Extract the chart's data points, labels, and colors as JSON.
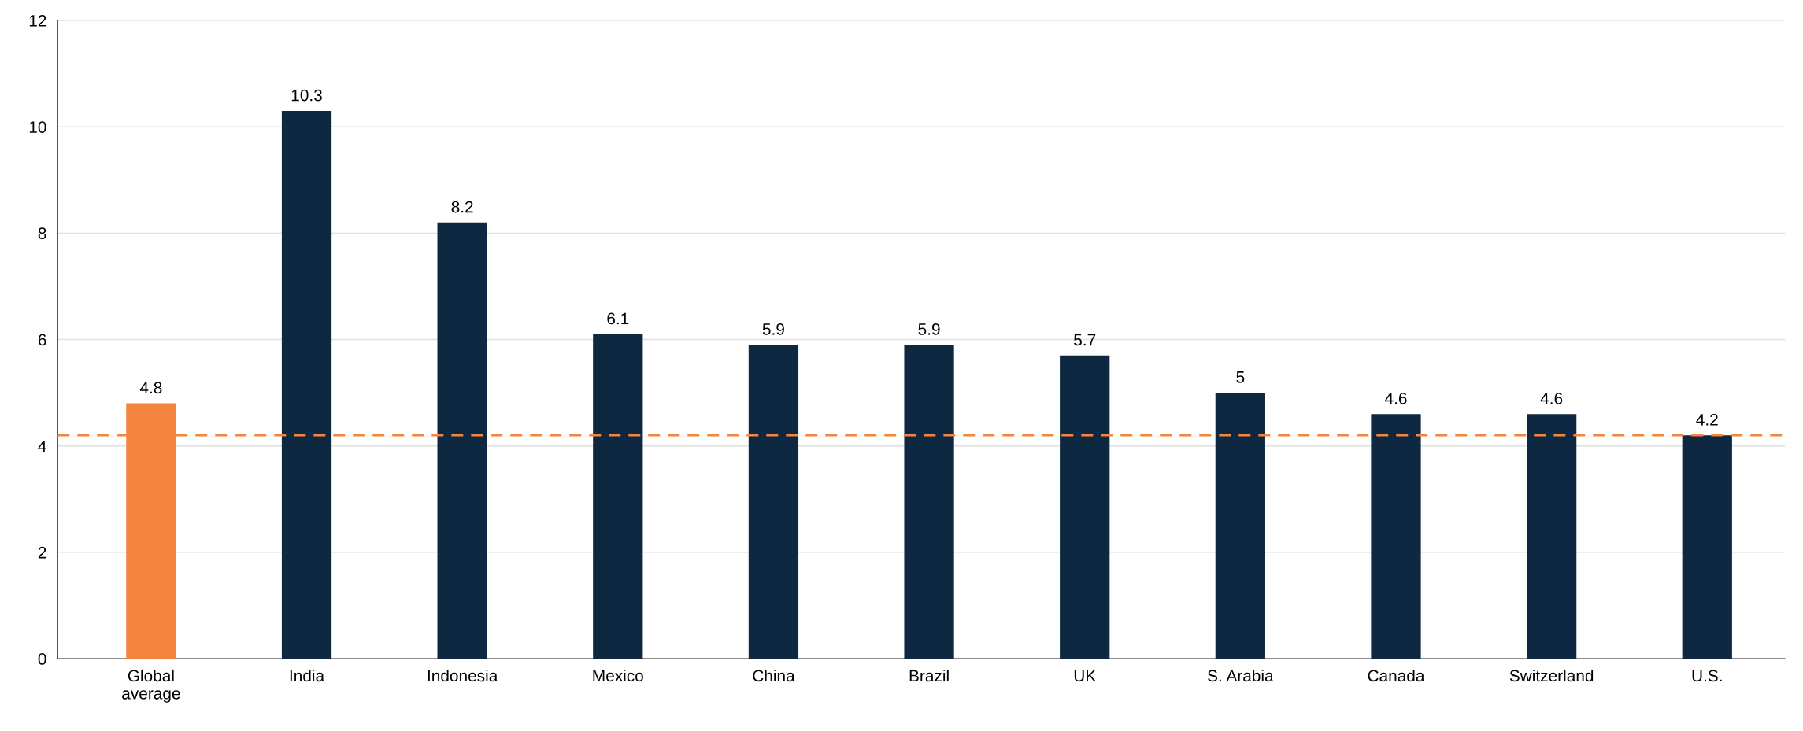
{
  "chart_data": {
    "type": "bar",
    "categories": [
      "Global\naverage",
      "India",
      "Indonesia",
      "Mexico",
      "China",
      "Brazil",
      "UK",
      "S. Arabia",
      "Canada",
      "Switzerland",
      "U.S."
    ],
    "values": [
      4.8,
      10.3,
      8.2,
      6.1,
      5.9,
      5.9,
      5.7,
      5,
      4.6,
      4.6,
      4.2
    ],
    "colors": [
      "#f5843f",
      "#0e2841",
      "#0e2841",
      "#0e2841",
      "#0e2841",
      "#0e2841",
      "#0e2841",
      "#0e2841",
      "#0e2841",
      "#0e2841",
      "#0e2841"
    ],
    "ylim": [
      0,
      12
    ],
    "yticks": [
      0,
      2,
      4,
      6,
      8,
      10,
      12
    ],
    "grid": "y",
    "data_labels": true,
    "legend": false,
    "ref_lines": [
      {
        "axis": "y",
        "value": 4.2,
        "color": "#f5843f",
        "line_style": "dashed"
      }
    ]
  }
}
